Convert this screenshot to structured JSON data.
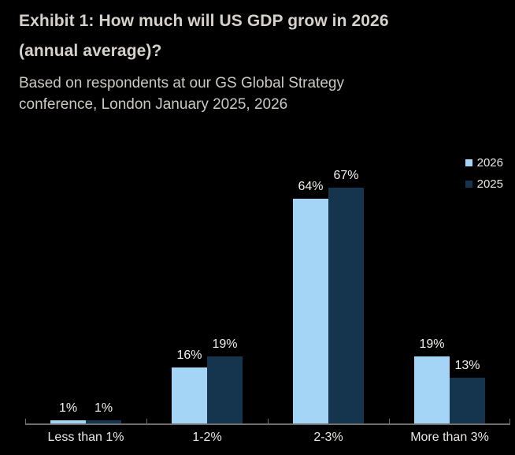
{
  "header": {
    "title_line1": "Exhibit 1: How much will US GDP grow in 2026",
    "title_line2": "(annual average)?",
    "subtitle": "Based on respondents at our GS Global Strategy conference, London January 2025, 2026"
  },
  "colors": {
    "background": "#000000",
    "series_2026": "#a4d5f7",
    "series_2025": "#15344e",
    "axis": "#6f6f6f",
    "title_text": "#d6d2cb",
    "label_text": "#f2f1ee"
  },
  "chart_data": {
    "type": "bar",
    "categories": [
      "Less than 1%",
      "1-2%",
      "2-3%",
      "More than 3%"
    ],
    "series": [
      {
        "name": "2026",
        "color_key": "series_2026",
        "values": [
          1,
          16,
          64,
          19
        ]
      },
      {
        "name": "2025",
        "color_key": "series_2025",
        "values": [
          1,
          19,
          67,
          13
        ]
      }
    ],
    "value_suffix": "%",
    "ylim": [
      0,
      75
    ],
    "grid": false,
    "data_labels": true,
    "legend_position": "top-right",
    "x_axis_ticks": "category-boundaries"
  }
}
